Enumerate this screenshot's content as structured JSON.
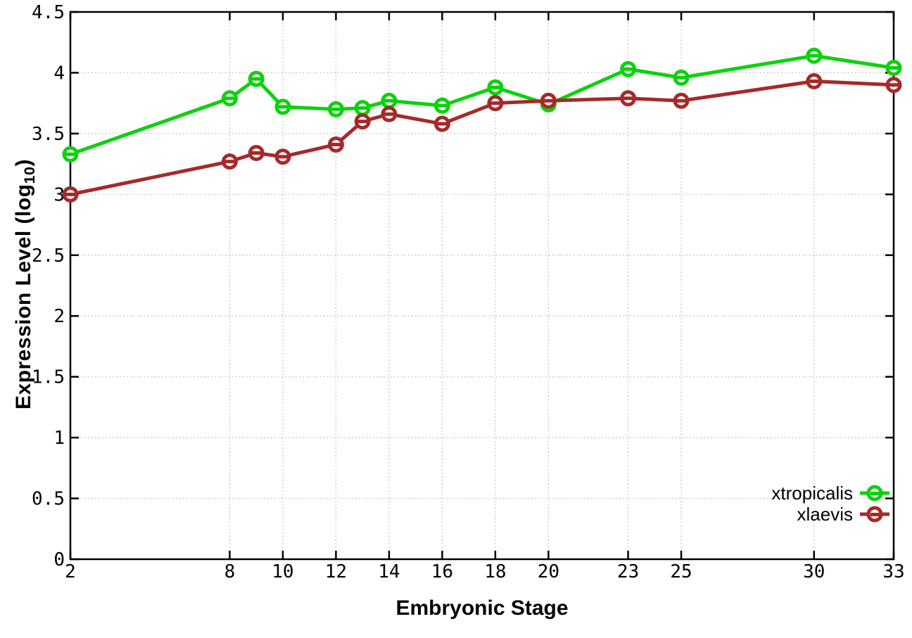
{
  "figure": {
    "background": "#ffffff",
    "border_color": "#000000",
    "grid_color": "#b4b4b4",
    "text_color": "#000000"
  },
  "chart_data": {
    "type": "line",
    "title": "",
    "xlabel": "Embryonic Stage",
    "ylabel": "Expression Level (log10)",
    "ylabel_parts": {
      "main": "Expression Level (log",
      "sub": "10",
      "close": ")"
    },
    "xlim": [
      2,
      33
    ],
    "ylim": [
      0,
      4.5
    ],
    "grid": true,
    "legend_position": "inside bottom-right",
    "x_ticks": [
      2,
      8,
      10,
      12,
      14,
      16,
      18,
      20,
      23,
      25,
      30,
      33
    ],
    "x_tick_labels": [
      "2",
      "8",
      "10",
      "12",
      "14",
      "16",
      "18",
      "20",
      "23",
      "25",
      "30",
      "33"
    ],
    "y_ticks": [
      0,
      0.5,
      1,
      1.5,
      2,
      2.5,
      3,
      3.5,
      4,
      4.5
    ],
    "y_tick_labels": [
      "0",
      "0.5",
      "1",
      "1.5",
      "2",
      "2.5",
      "3",
      "3.5",
      "4",
      "4.5"
    ],
    "x": [
      2,
      8,
      9,
      10,
      12,
      13,
      14,
      16,
      18,
      20,
      23,
      25,
      30,
      33
    ],
    "series": [
      {
        "name": "xtropicalis",
        "color": "#0cd20c",
        "values": [
          3.33,
          3.79,
          3.95,
          3.72,
          3.7,
          3.71,
          3.77,
          3.73,
          3.88,
          3.74,
          4.03,
          3.96,
          4.14,
          4.04
        ]
      },
      {
        "name": "xlaevis",
        "color": "#a52a2a",
        "values": [
          3.0,
          3.27,
          3.34,
          3.31,
          3.41,
          3.6,
          3.66,
          3.58,
          3.75,
          3.77,
          3.79,
          3.77,
          3.93,
          3.9
        ]
      }
    ]
  }
}
